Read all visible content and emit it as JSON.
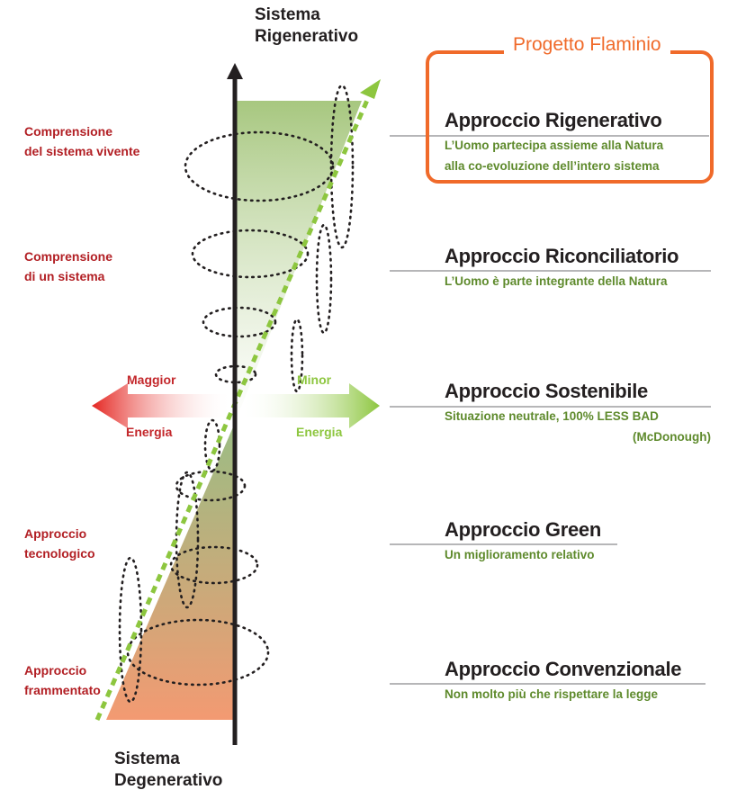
{
  "axis": {
    "top_line1": "Sistema",
    "top_line2": "Rigenerativo",
    "bottom_line1": "Sistema",
    "bottom_line2": "Degenerativo"
  },
  "left_labels": [
    {
      "line1": "Comprensione",
      "line2": "del sistema vivente"
    },
    {
      "line1": "Comprensione",
      "line2": "di un sistema"
    },
    {
      "line1": "Approccio",
      "line2": "tecnologico"
    },
    {
      "line1": "Approccio",
      "line2": "frammentato"
    }
  ],
  "energy": {
    "left_top": "Maggior",
    "left_bottom": "Energia",
    "right_top": "Minor",
    "right_bottom": "Energia"
  },
  "project": {
    "title": "Progetto Flaminio"
  },
  "levels": [
    {
      "heading": "Approccio Rigenerativo",
      "lines": [
        "L’Uomo partecipa assieme alla Natura",
        "alla co-evoluzione dell’intero sistema"
      ]
    },
    {
      "heading": "Approccio Riconciliatorio",
      "lines": [
        "L’Uomo è parte integrante della Natura"
      ]
    },
    {
      "heading": "Approccio Sostenibile",
      "lines": [
        "Situazione neutrale, 100% LESS BAD",
        "(McDonough)"
      ]
    },
    {
      "heading": "Approccio Green",
      "lines": [
        "Un miglioramento relativo"
      ]
    },
    {
      "heading": "Approccio Convenzionale",
      "lines": [
        "Non molto più che rispettare la legge"
      ]
    }
  ],
  "colors": {
    "green_wedge": "#a7c77f",
    "orange_wedge": "#f2956d",
    "accent_orange": "#f06a2a",
    "energy_red": "#e42520",
    "energy_green": "#8dc63f",
    "dashed_arrow": "#8dc63f",
    "left_label_red": "#b21f24",
    "sub_green": "#5e8a2c"
  }
}
